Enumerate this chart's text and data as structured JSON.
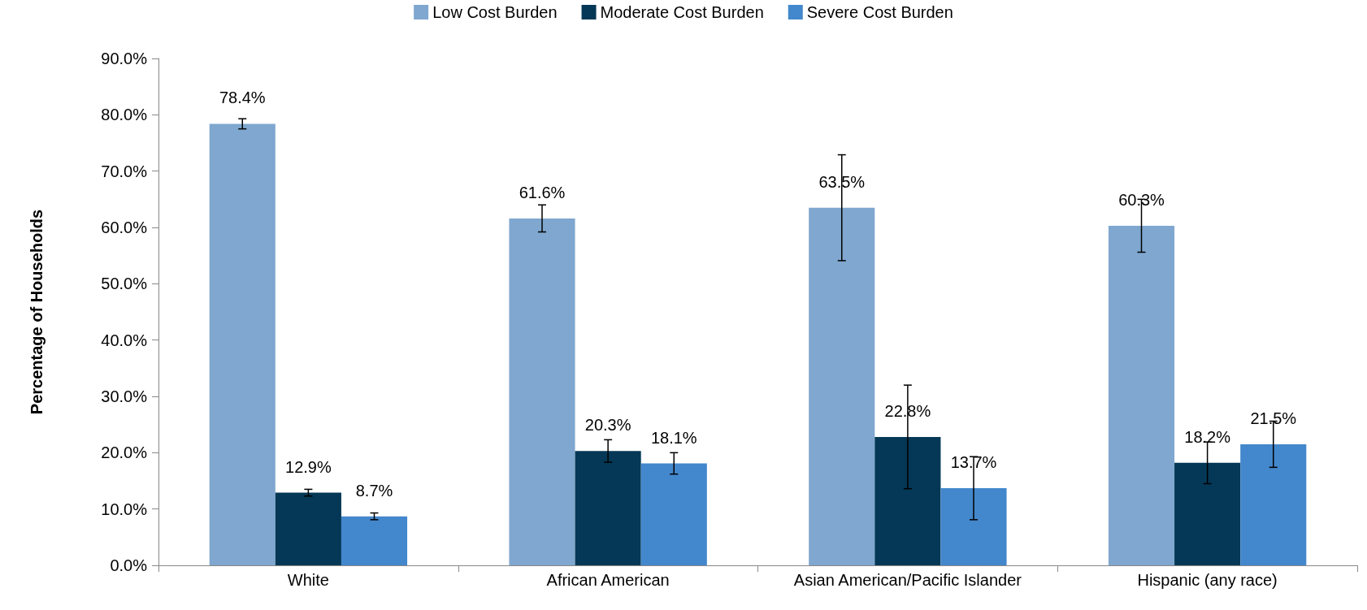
{
  "chart_data": {
    "type": "bar",
    "ylabel": "Percentage of Households",
    "categories": [
      "White",
      "African American",
      "Asian American/Pacific Islander",
      "Hispanic (any race)"
    ],
    "series": [
      {
        "name": "Low Cost Burden",
        "color": "#7fa7cf",
        "values": [
          78.4,
          61.6,
          63.5,
          60.3
        ],
        "value_labels": [
          "78.4%",
          "61.6%",
          "63.5%",
          "60.3%"
        ],
        "errors": [
          0.9,
          2.4,
          9.4,
          4.7
        ]
      },
      {
        "name": "Moderate Cost Burden",
        "color": "#043856",
        "values": [
          12.9,
          20.3,
          22.8,
          18.2
        ],
        "value_labels": [
          "12.9%",
          "20.3%",
          "22.8%",
          "18.2%"
        ],
        "errors": [
          0.6,
          2.0,
          9.2,
          3.7
        ]
      },
      {
        "name": "Severe Cost Burden",
        "color": "#4387cc",
        "values": [
          8.7,
          18.1,
          13.7,
          21.5
        ],
        "value_labels": [
          "8.7%",
          "18.1%",
          "13.7%",
          "21.5%"
        ],
        "errors": [
          0.6,
          1.9,
          5.6,
          4.1
        ]
      }
    ],
    "ylim": [
      0,
      90
    ],
    "yticks": [
      {
        "value": 0,
        "label": "0.0%"
      },
      {
        "value": 10,
        "label": "10.0%"
      },
      {
        "value": 20,
        "label": "20.0%"
      },
      {
        "value": 30,
        "label": "30.0%"
      },
      {
        "value": 40,
        "label": "40.0%"
      },
      {
        "value": 50,
        "label": "50.0%"
      },
      {
        "value": 60,
        "label": "60.0%"
      },
      {
        "value": 70,
        "label": "70.0%"
      },
      {
        "value": 80,
        "label": "80.0%"
      },
      {
        "value": 90,
        "label": "90.0%"
      }
    ],
    "grid": false,
    "legend": "top"
  }
}
